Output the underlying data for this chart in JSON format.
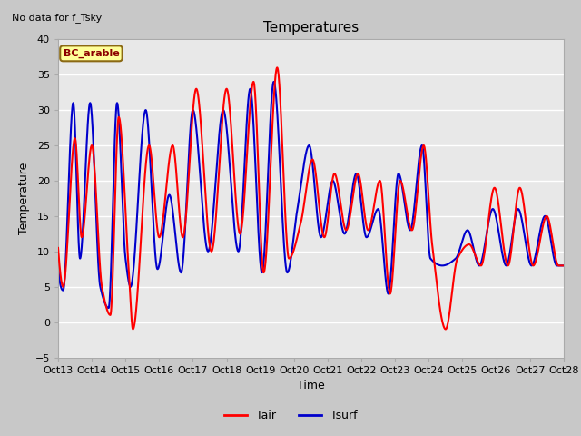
{
  "title": "Temperatures",
  "xlabel": "Time",
  "ylabel": "Temperature",
  "top_left_text": "No data for f_Tsky",
  "annotation_text": "BC_arable",
  "ylim": [
    -5,
    40
  ],
  "yticks": [
    -5,
    0,
    5,
    10,
    15,
    20,
    25,
    30,
    35,
    40
  ],
  "xtick_labels": [
    "Oct 13",
    "Oct 14",
    "Oct 15",
    "Oct 16",
    "Oct 17",
    "Oct 18",
    "Oct 19",
    "Oct 20",
    "Oct 21",
    "Oct 22",
    "Oct 23",
    "Oct 24",
    "Oct 25",
    "Oct 26",
    "Oct 27",
    "Oct 28"
  ],
  "legend_labels": [
    "Tair",
    "Tsurf"
  ],
  "tair_color": "#ff0000",
  "tsurf_color": "#0000cc",
  "plot_bg_color": "#e8e8e8",
  "fig_bg_color": "#c8c8c8",
  "grid_color": "#ffffff",
  "annotation_bg": "#ffff99",
  "annotation_border": "#8B6914",
  "title_fontsize": 11,
  "axis_label_fontsize": 9,
  "tick_fontsize": 8
}
